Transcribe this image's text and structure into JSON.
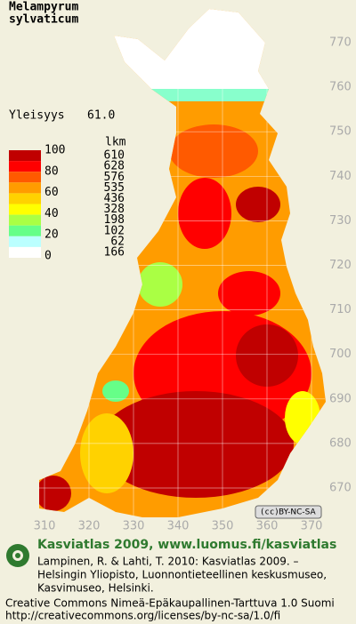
{
  "title": [
    "Melampyrum",
    "sylvaticum"
  ],
  "frequency": {
    "label": "Yleisyys",
    "value": "61.0"
  },
  "legend": {
    "scale": [
      100,
      80,
      60,
      40,
      20,
      0
    ],
    "count_header": "lkm",
    "classes": [
      {
        "color": "#c00000",
        "count": 610
      },
      {
        "color": "#ff0000",
        "count": 628
      },
      {
        "color": "#ff5a00",
        "count": 576
      },
      {
        "color": "#ff9c00",
        "count": 535
      },
      {
        "color": "#ffd200",
        "count": 436
      },
      {
        "color": "#ffff00",
        "count": 328
      },
      {
        "color": "#aaff44",
        "count": 198
      },
      {
        "color": "#66ff88",
        "count": 102
      },
      {
        "color": "#bbffff",
        "count": 62
      },
      {
        "color": "#ffffff",
        "count": 166
      }
    ]
  },
  "grid": {
    "northing": [
      770,
      760,
      750,
      740,
      730,
      720,
      710,
      700,
      690,
      680,
      670
    ],
    "easting": [
      310,
      320,
      330,
      340,
      350,
      360,
      370
    ]
  },
  "badge": "BY-NC-SA",
  "footer": {
    "heading": "Kasviatlas 2009, www.luomus.fi/kasviatlas",
    "citation": [
      "Lampinen, R. & Lahti, T. 2010: Kasviatlas 2009. –",
      "Helsingin Yliopisto, Luonnontieteellinen keskusmuseo,",
      "Kasvimuseo, Helsinki."
    ],
    "license": [
      "Creative Commons Nimeä-Epäkaupallinen-Tarttuva 1.0 Suomi",
      "http://creativecommons.org/licenses/by-nc-sa/1.0/fi"
    ]
  }
}
